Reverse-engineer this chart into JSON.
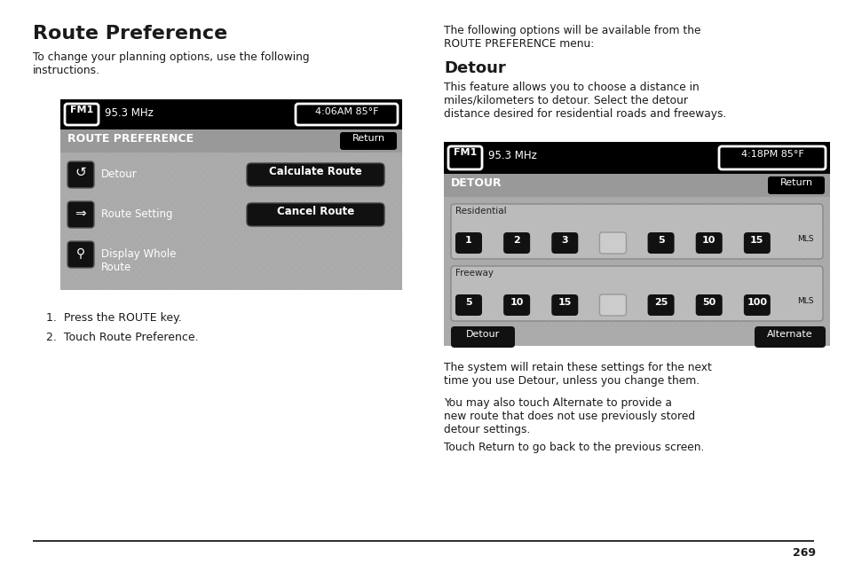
{
  "title": "Route Preference",
  "left_para1": "To change your planning options, use the following\ninstructions.",
  "left_steps": [
    "Press the ROUTE key.",
    "Touch Route Preference."
  ],
  "right_para1": "The following options will be available from the\nROUTE PREFERENCE menu:",
  "right_subtitle": "Detour",
  "right_para2": "This feature allows you to choose a distance in\nmiles/kilometers to detour. Select the detour\ndistance desired for residential roads and freeways.",
  "right_para3": "The system will retain these settings for the next\ntime you use Detour, unless you change them.",
  "right_para4": "You may also touch Alternate to provide a\nnew route that does not use previously stored\ndetour settings.",
  "right_para5": "Touch Return to go back to the previous screen.",
  "page_number": "269",
  "sc1_header_left": "FM1",
  "sc1_header_freq": "95.3 MHz",
  "sc1_header_right": "4:06AM 85°F",
  "sc1_menu_title": "ROUTE PREFERENCE",
  "sc1_return": "Return",
  "sc1_items": [
    "Detour",
    "Route Setting",
    "Display Whole\nRoute"
  ],
  "sc1_right_btns": [
    "Calculate Route",
    "Cancel Route"
  ],
  "sc2_header_left": "FM1",
  "sc2_header_freq": "95.3 MHz",
  "sc2_header_right": "4:18PM 85°F",
  "sc2_menu_title": "DETOUR",
  "sc2_return": "Return",
  "sc2_res_label": "Residential",
  "sc2_res_btns": [
    "1",
    "2",
    "3",
    "",
    "5",
    "10",
    "15",
    "MLS"
  ],
  "sc2_free_label": "Freeway",
  "sc2_free_btns": [
    "5",
    "10",
    "15",
    "",
    "25",
    "50",
    "100",
    "MLS"
  ],
  "sc2_bot_left": "Detour",
  "sc2_bot_right": "Alternate",
  "bg_color": "#ffffff",
  "text_color": "#1a1a1a",
  "screen_bg_color": "#888888",
  "btn_dark": "#111111",
  "btn_text": "#ffffff"
}
